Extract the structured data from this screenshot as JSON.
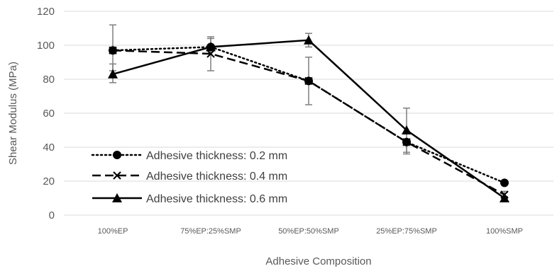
{
  "chart_data": {
    "type": "line",
    "title": "",
    "xlabel": "Adhesive Composition",
    "ylabel": "Shear Modulus (MPa)",
    "ylim": [
      0,
      120
    ],
    "yticks": [
      0,
      20,
      40,
      60,
      80,
      100,
      120
    ],
    "grid": "horizontal",
    "legend_position": "bottom-left",
    "categories": [
      "100%EP",
      "75%EP:25%SMP",
      "50%EP:50%SMP",
      "25%EP:75%SMP",
      "100%SMP"
    ],
    "series": [
      {
        "name": "Adhesive thickness: 0.2 mm",
        "values": [
          97,
          99,
          79,
          43,
          19
        ],
        "line_style": "dotted",
        "marker": "circle",
        "color": "#000000"
      },
      {
        "name": "Adhesive thickness: 0.4 mm",
        "values": [
          97,
          95,
          79,
          43,
          12
        ],
        "error_low": [
          85,
          85,
          65,
          37,
          10
        ],
        "error_high": [
          112,
          104,
          93,
          44,
          14
        ],
        "line_style": "dashed",
        "marker": "x",
        "color": "#000000"
      },
      {
        "name": "Adhesive thickness: 0.6 mm",
        "values": [
          83,
          99,
          103,
          50,
          10
        ],
        "error_low": [
          78,
          97,
          99,
          36,
          8
        ],
        "error_high": [
          89,
          105,
          107,
          63,
          11
        ],
        "line_style": "solid",
        "marker": "triangle",
        "color": "#000000"
      }
    ],
    "gridline_color": "#d9d9d9",
    "errorbar_color": "#7f7f7f",
    "text_color": "#595959"
  }
}
